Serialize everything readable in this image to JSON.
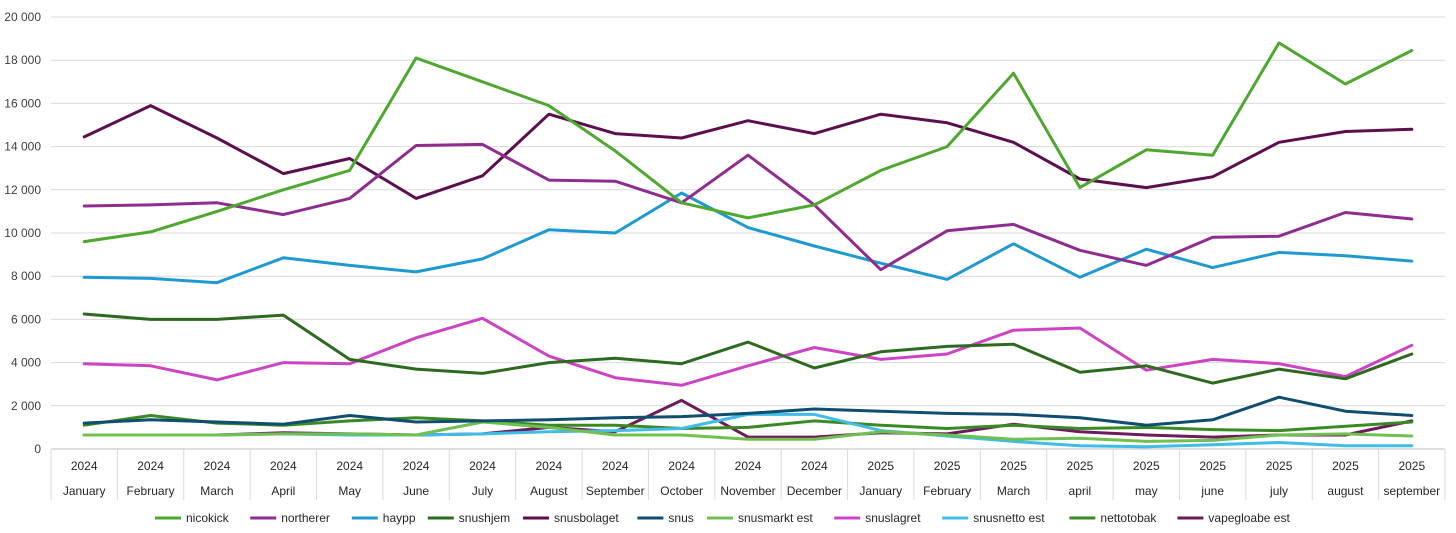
{
  "chart_data": {
    "type": "line",
    "title": "",
    "xlabel": "",
    "ylabel": "",
    "ylim": [
      0,
      20000
    ],
    "ytick_labels": [
      "0",
      "2 000",
      "4 000",
      "6 000",
      "8 000",
      "10 000",
      "12 000",
      "14 000",
      "16 000",
      "18 000",
      "20 000"
    ],
    "ytick_values": [
      0,
      2000,
      4000,
      6000,
      8000,
      10000,
      12000,
      14000,
      16000,
      18000,
      20000
    ],
    "grid": true,
    "legend_position": "bottom",
    "categories": [
      {
        "year": "2024",
        "month": "January"
      },
      {
        "year": "2024",
        "month": "February"
      },
      {
        "year": "2024",
        "month": "March"
      },
      {
        "year": "2024",
        "month": "April"
      },
      {
        "year": "2024",
        "month": "May"
      },
      {
        "year": "2024",
        "month": "June"
      },
      {
        "year": "2024",
        "month": "July"
      },
      {
        "year": "2024",
        "month": "August"
      },
      {
        "year": "2024",
        "month": "September"
      },
      {
        "year": "2024",
        "month": "October"
      },
      {
        "year": "2024",
        "month": "November"
      },
      {
        "year": "2024",
        "month": "December"
      },
      {
        "year": "2025",
        "month": "January"
      },
      {
        "year": "2025",
        "month": "February"
      },
      {
        "year": "2025",
        "month": "March"
      },
      {
        "year": "2025",
        "month": "april"
      },
      {
        "year": "2025",
        "month": "may"
      },
      {
        "year": "2025",
        "month": "june"
      },
      {
        "year": "2025",
        "month": "july"
      },
      {
        "year": "2025",
        "month": "august"
      },
      {
        "year": "2025",
        "month": "september"
      }
    ],
    "series": [
      {
        "name": "nicokick",
        "color": "#4ea72e",
        "values": [
          9600,
          10050,
          11000,
          12000,
          12900,
          18100,
          17000,
          15900,
          13800,
          11400,
          10700,
          11300,
          12900,
          14000,
          17400,
          12100,
          13850,
          13600,
          18800,
          16900,
          18450
        ]
      },
      {
        "name": "northerer",
        "color": "#8f2d8f",
        "values": [
          11250,
          11300,
          11400,
          10850,
          11600,
          14050,
          14100,
          12450,
          12400,
          11400,
          13600,
          11300,
          8300,
          10100,
          10400,
          9200,
          8500,
          9800,
          9850,
          10950,
          10650
        ]
      },
      {
        "name": "haypp",
        "color": "#1f9ad1",
        "values": [
          7950,
          7900,
          7700,
          8850,
          8500,
          8200,
          8800,
          10150,
          10000,
          11850,
          10250,
          9400,
          8600,
          7850,
          9500,
          7950,
          9250,
          8400,
          9100,
          8950,
          8700
        ]
      },
      {
        "name": "snushjem",
        "color": "#2d6a1f",
        "values": [
          6250,
          6000,
          6000,
          6200,
          4150,
          3700,
          3500,
          4000,
          4200,
          3950,
          4950,
          3750,
          4500,
          4750,
          4850,
          3550,
          3850,
          3050,
          3700,
          3250,
          4400
        ]
      },
      {
        "name": "snusbolaget",
        "color": "#5c0f4f",
        "values": [
          14450,
          15900,
          14400,
          12750,
          13450,
          11600,
          12650,
          15500,
          14600,
          14400,
          15200,
          14600,
          15500,
          15100,
          14200,
          12500,
          12100,
          12600,
          14200,
          14700,
          14800
        ]
      },
      {
        "name": "snus",
        "color": "#0f4e6e",
        "values": [
          1200,
          1350,
          1250,
          1150,
          1550,
          1250,
          1300,
          1350,
          1450,
          1500,
          1650,
          1850,
          1750,
          1650,
          1600,
          1450,
          1100,
          1350,
          2400,
          1750,
          1550
        ]
      },
      {
        "name": "snusmarkt est",
        "color": "#70c050",
        "values": [
          650,
          650,
          650,
          700,
          700,
          650,
          1250,
          1000,
          650,
          650,
          450,
          450,
          800,
          650,
          450,
          500,
          350,
          400,
          650,
          700,
          600
        ]
      },
      {
        "name": "snuslagret",
        "color": "#cc44c4",
        "values": [
          3950,
          3850,
          3200,
          4000,
          3950,
          5150,
          6050,
          4300,
          3300,
          2950,
          3850,
          4700,
          4150,
          4400,
          5500,
          5600,
          3650,
          4150,
          3950,
          3350,
          4800
        ]
      },
      {
        "name": "snusnetto est",
        "color": "#3fbce8",
        "values": [
          650,
          650,
          650,
          700,
          650,
          650,
          700,
          800,
          850,
          950,
          1600,
          1600,
          850,
          600,
          350,
          150,
          100,
          200,
          300,
          150,
          150
        ]
      },
      {
        "name": "nettotobak",
        "color": "#3a8a24",
        "values": [
          1100,
          1550,
          1200,
          1100,
          1300,
          1450,
          1300,
          1100,
          1100,
          950,
          1000,
          1300,
          1100,
          950,
          1100,
          950,
          1000,
          900,
          850,
          1050,
          1250
        ]
      },
      {
        "name": "vapegloabe est",
        "color": "#6e1a5e",
        "values": [
          650,
          650,
          650,
          750,
          700,
          650,
          700,
          1000,
          800,
          2250,
          550,
          550,
          750,
          700,
          1150,
          800,
          650,
          550,
          650,
          650,
          1300
        ]
      }
    ]
  }
}
